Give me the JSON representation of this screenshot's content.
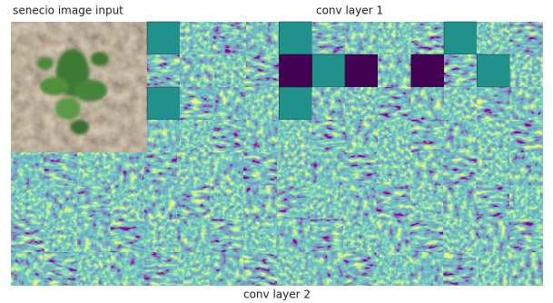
{
  "input_title": "senecio image input",
  "layer1_title": "conv layer 1",
  "layer2_title": "conv layer 2"
}
